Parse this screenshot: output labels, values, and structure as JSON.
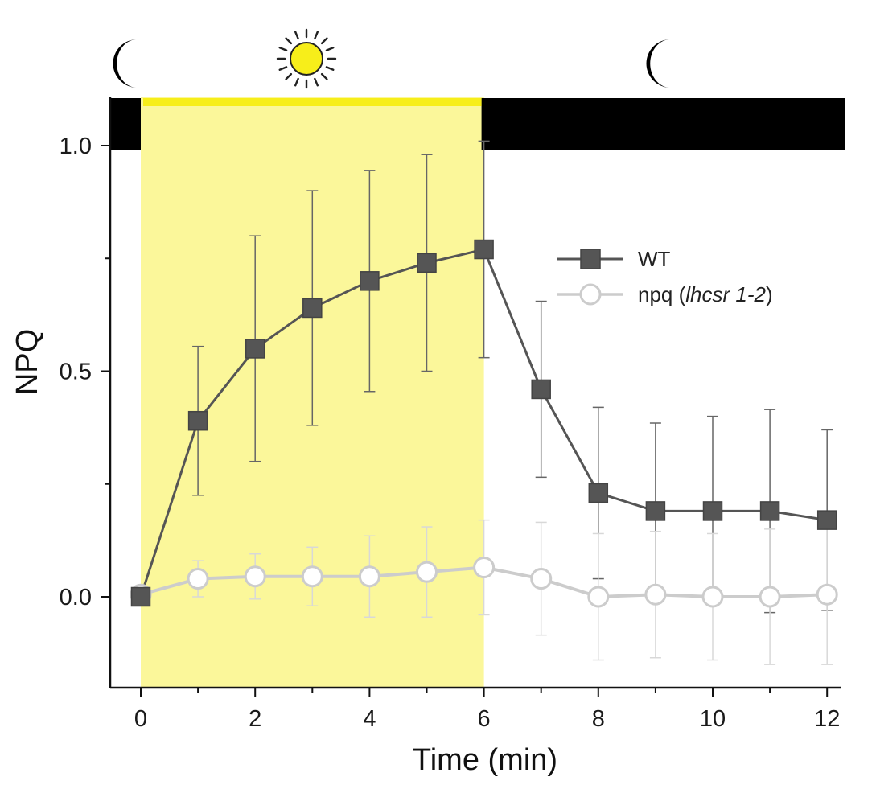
{
  "chart_data": {
    "type": "line",
    "xlabel": "Time (min)",
    "ylabel": "NPQ",
    "xlim": [
      -0.5,
      12.2
    ],
    "ylim": [
      -0.2,
      1.1
    ],
    "x_ticks": [
      0,
      2,
      4,
      6,
      8,
      10,
      12
    ],
    "x_tick_labels": [
      "0",
      "2",
      "4",
      "6",
      "8",
      "10",
      "12"
    ],
    "y_ticks": [
      0.0,
      0.5,
      1.0
    ],
    "y_tick_labels": [
      "0.0",
      "0.5",
      "1.0"
    ],
    "light_period": {
      "start": 0,
      "end": 6,
      "color": "#fbf79a"
    },
    "dark_bar_color": "#000000",
    "sun_color": "#f7ee1a",
    "series": [
      {
        "name": "WT",
        "marker": "filled-square",
        "color": "#555555",
        "x": [
          0,
          1,
          2,
          3,
          4,
          5,
          6,
          7,
          8,
          9,
          10,
          11,
          12
        ],
        "values": [
          0.0,
          0.39,
          0.55,
          0.64,
          0.7,
          0.74,
          0.77,
          0.46,
          0.23,
          0.19,
          0.19,
          0.19,
          0.17
        ],
        "error": [
          0.0,
          0.165,
          0.25,
          0.26,
          0.245,
          0.24,
          0.24,
          0.195,
          0.19,
          0.195,
          0.21,
          0.225,
          0.2
        ]
      },
      {
        "name_prefix": "npq (",
        "name_italic": "lhcsr 1-2",
        "name_suffix": ")",
        "marker": "open-circle",
        "color": "#cccccc",
        "x": [
          0,
          1,
          2,
          3,
          4,
          5,
          6,
          7,
          8,
          9,
          10,
          11,
          12
        ],
        "values": [
          0.005,
          0.04,
          0.045,
          0.045,
          0.045,
          0.055,
          0.065,
          0.04,
          0.0,
          0.005,
          0.0,
          0.0,
          0.005
        ],
        "error": [
          0.0,
          0.04,
          0.05,
          0.065,
          0.09,
          0.1,
          0.105,
          0.125,
          0.14,
          0.14,
          0.14,
          0.15,
          0.155
        ]
      }
    ],
    "legend_position": "center-right"
  }
}
